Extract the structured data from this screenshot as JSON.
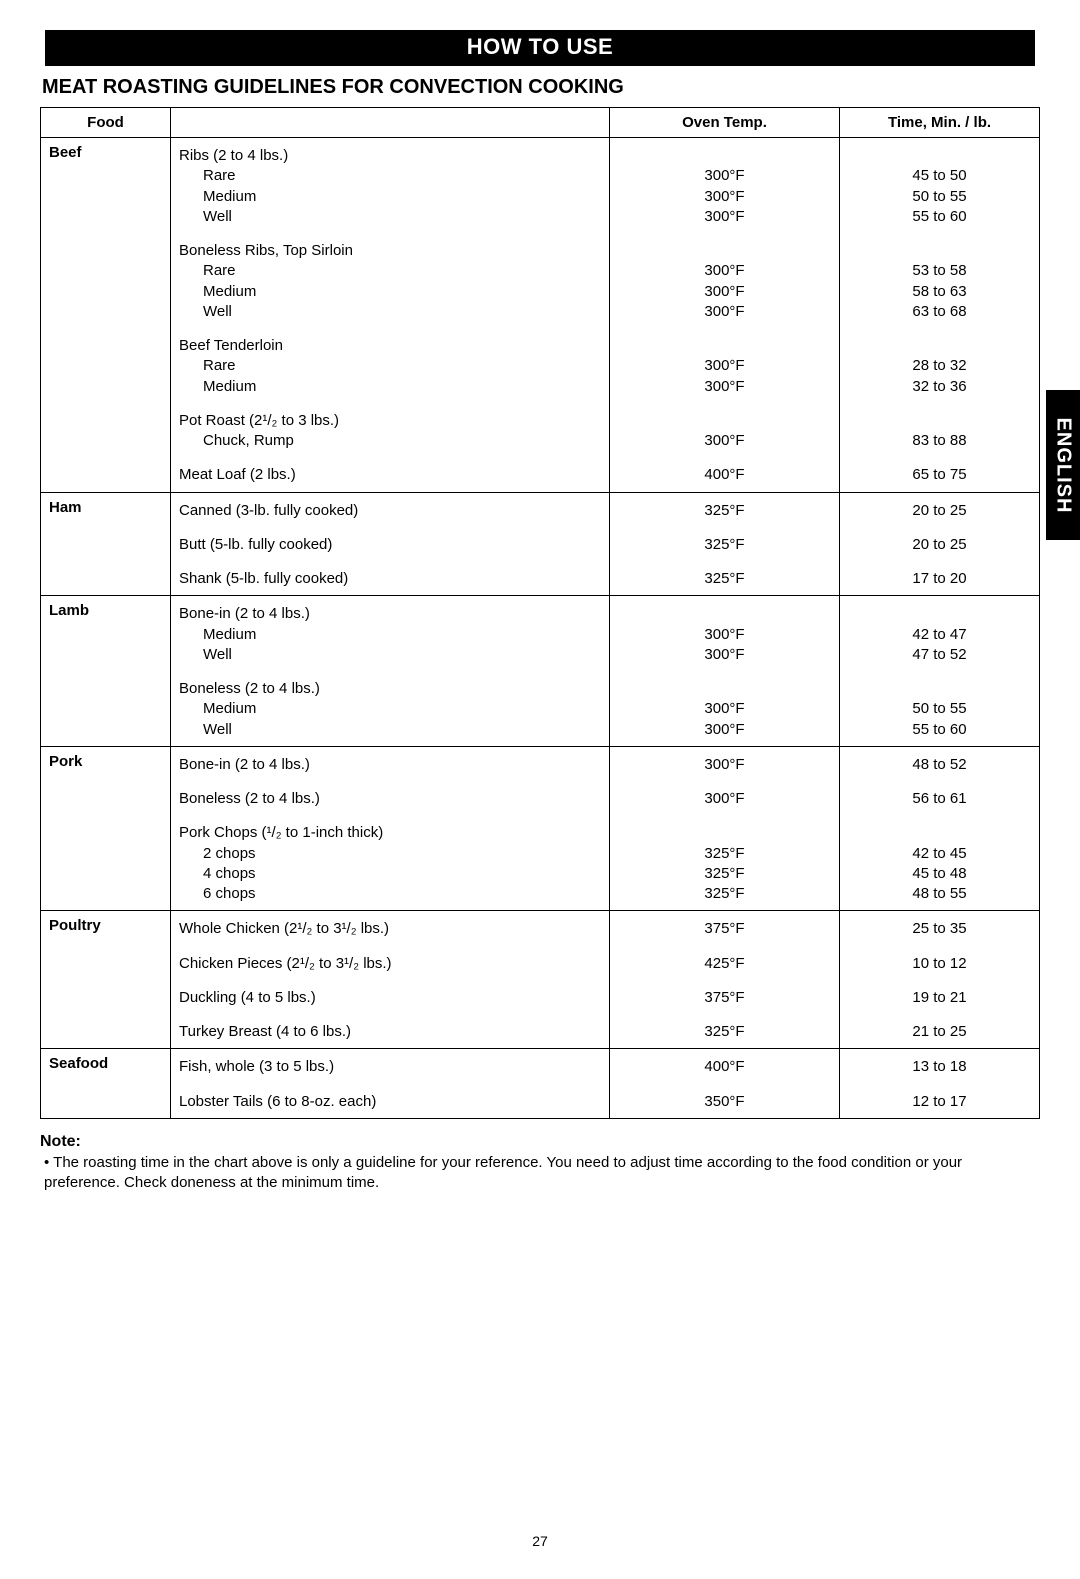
{
  "banner": "HOW TO USE",
  "subtitle": "MEAT ROASTING GUIDELINES FOR CONVECTION COOKING",
  "side_tab": "ENGLISH",
  "page_number": "27",
  "headers": {
    "food": "Food",
    "temp": "Oven Temp.",
    "time": "Time, Min. / lb."
  },
  "note_label": "Note:",
  "note_text": "The roasting time in the chart above is only a guideline for your reference. You need to adjust time according to the food condition or your preference. Check doneness at the minimum time.",
  "colors": {
    "banner_bg": "#000000",
    "banner_fg": "#ffffff",
    "border": "#000000",
    "page_bg": "#ffffff",
    "text": "#000000"
  },
  "sections": [
    {
      "label": "Beef",
      "groups": [
        {
          "title": "Ribs (2 to 4 lbs.)",
          "rows": [
            {
              "name": "Rare",
              "temp": "300°F",
              "time": "45 to 50"
            },
            {
              "name": "Medium",
              "temp": "300°F",
              "time": "50 to 55"
            },
            {
              "name": "Well",
              "temp": "300°F",
              "time": "55 to 60"
            }
          ]
        },
        {
          "title": "Boneless Ribs, Top Sirloin",
          "rows": [
            {
              "name": "Rare",
              "temp": "300°F",
              "time": "53 to 58"
            },
            {
              "name": "Medium",
              "temp": "300°F",
              "time": "58 to 63"
            },
            {
              "name": "Well",
              "temp": "300°F",
              "time": "63 to 68"
            }
          ]
        },
        {
          "title": "Beef Tenderloin",
          "rows": [
            {
              "name": "Rare",
              "temp": "300°F",
              "time": "28 to 32"
            },
            {
              "name": "Medium",
              "temp": "300°F",
              "time": "32 to 36"
            }
          ]
        },
        {
          "title": "Pot Roast (2¹/₂ to 3 lbs.)",
          "rows": [
            {
              "name": "Chuck, Rump",
              "temp": "300°F",
              "time": "83 to 88"
            }
          ]
        },
        {
          "title": "Meat Loaf (2 lbs.)",
          "flat": true,
          "rows": [
            {
              "name": "",
              "temp": "400°F",
              "time": "65 to 75"
            }
          ]
        }
      ]
    },
    {
      "label": "Ham",
      "groups": [
        {
          "title": "Canned (3-lb. fully cooked)",
          "flat": true,
          "rows": [
            {
              "name": "",
              "temp": "325°F",
              "time": "20 to 25"
            }
          ]
        },
        {
          "title": "Butt (5-lb. fully cooked)",
          "flat": true,
          "rows": [
            {
              "name": "",
              "temp": "325°F",
              "time": "20 to 25"
            }
          ]
        },
        {
          "title": "Shank (5-lb. fully cooked)",
          "flat": true,
          "rows": [
            {
              "name": "",
              "temp": "325°F",
              "time": "17 to 20"
            }
          ]
        }
      ]
    },
    {
      "label": "Lamb",
      "groups": [
        {
          "title": "Bone-in (2 to 4 lbs.)",
          "rows": [
            {
              "name": "Medium",
              "temp": "300°F",
              "time": "42 to 47"
            },
            {
              "name": "Well",
              "temp": "300°F",
              "time": "47 to 52"
            }
          ]
        },
        {
          "title": "Boneless (2 to 4 lbs.)",
          "rows": [
            {
              "name": "Medium",
              "temp": "300°F",
              "time": "50 to 55"
            },
            {
              "name": "Well",
              "temp": "300°F",
              "time": "55 to 60"
            }
          ]
        }
      ]
    },
    {
      "label": "Pork",
      "groups": [
        {
          "title": "Bone-in (2 to 4 lbs.)",
          "flat": true,
          "rows": [
            {
              "name": "",
              "temp": "300°F",
              "time": "48 to 52"
            }
          ]
        },
        {
          "title": "Boneless (2 to 4 lbs.)",
          "flat": true,
          "rows": [
            {
              "name": "",
              "temp": "300°F",
              "time": "56 to 61"
            }
          ]
        },
        {
          "title": "Pork Chops (¹/₂ to 1-inch thick)",
          "rows": [
            {
              "name": "2 chops",
              "temp": "325°F",
              "time": "42 to 45"
            },
            {
              "name": "4 chops",
              "temp": "325°F",
              "time": "45 to 48"
            },
            {
              "name": "6 chops",
              "temp": "325°F",
              "time": "48 to 55"
            }
          ]
        }
      ]
    },
    {
      "label": "Poultry",
      "groups": [
        {
          "title": "Whole Chicken (2¹/₂ to 3¹/₂ lbs.)",
          "flat": true,
          "rows": [
            {
              "name": "",
              "temp": "375°F",
              "time": "25 to 35"
            }
          ]
        },
        {
          "title": "Chicken Pieces (2¹/₂ to 3¹/₂ lbs.)",
          "flat": true,
          "rows": [
            {
              "name": "",
              "temp": "425°F",
              "time": "10 to 12"
            }
          ]
        },
        {
          "title": "Duckling (4 to 5 lbs.)",
          "flat": true,
          "rows": [
            {
              "name": "",
              "temp": "375°F",
              "time": "19 to 21"
            }
          ]
        },
        {
          "title": "Turkey Breast (4 to 6 lbs.)",
          "flat": true,
          "rows": [
            {
              "name": "",
              "temp": "325°F",
              "time": "21 to 25"
            }
          ]
        }
      ]
    },
    {
      "label": "Seafood",
      "groups": [
        {
          "title": "Fish, whole (3 to 5 lbs.)",
          "flat": true,
          "rows": [
            {
              "name": "",
              "temp": "400°F",
              "time": "13 to 18"
            }
          ]
        },
        {
          "title": "Lobster Tails (6 to 8-oz. each)",
          "flat": true,
          "rows": [
            {
              "name": "",
              "temp": "350°F",
              "time": "12 to 17"
            }
          ]
        }
      ]
    }
  ]
}
